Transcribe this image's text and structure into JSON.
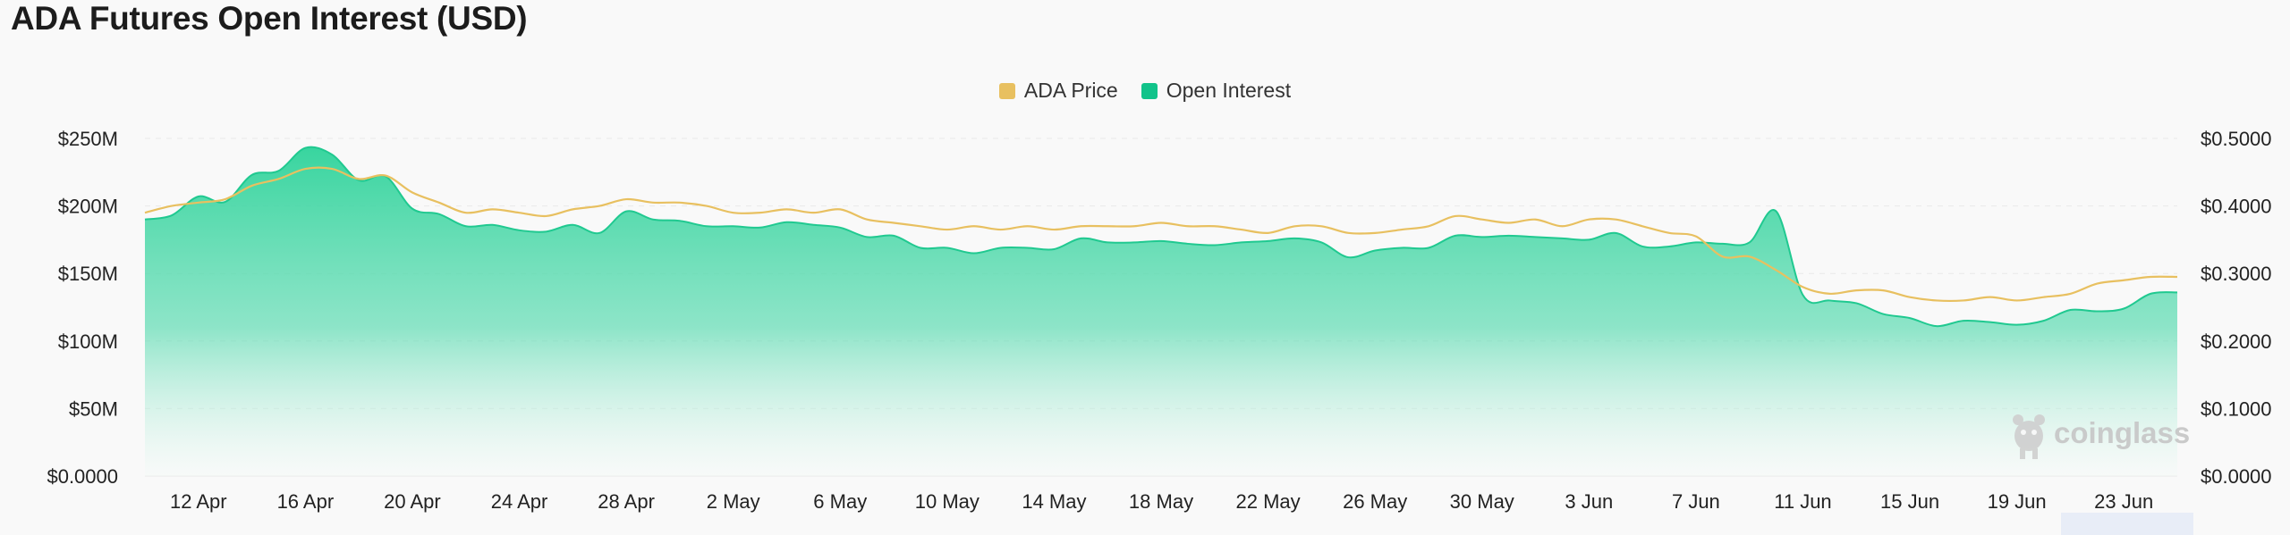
{
  "page": {
    "title": "ADA Futures Open Interest (USD)"
  },
  "legend": [
    {
      "label": "ADA Price",
      "color": "#e8c060"
    },
    {
      "label": "Open Interest",
      "color": "#11c38a"
    }
  ],
  "watermark": "coinglass",
  "chart_data": {
    "type": "area",
    "title": "ADA Futures Open Interest (USD)",
    "grid": true,
    "legend_position": "top-center",
    "x": [
      "2024-04-10",
      "2024-04-11",
      "2024-04-12",
      "2024-04-13",
      "2024-04-14",
      "2024-04-15",
      "2024-04-16",
      "2024-04-17",
      "2024-04-18",
      "2024-04-19",
      "2024-04-20",
      "2024-04-21",
      "2024-04-22",
      "2024-04-23",
      "2024-04-24",
      "2024-04-25",
      "2024-04-26",
      "2024-04-27",
      "2024-04-28",
      "2024-04-29",
      "2024-04-30",
      "2024-05-01",
      "2024-05-02",
      "2024-05-03",
      "2024-05-04",
      "2024-05-05",
      "2024-05-06",
      "2024-05-07",
      "2024-05-08",
      "2024-05-09",
      "2024-05-10",
      "2024-05-11",
      "2024-05-12",
      "2024-05-13",
      "2024-05-14",
      "2024-05-15",
      "2024-05-16",
      "2024-05-17",
      "2024-05-18",
      "2024-05-19",
      "2024-05-20",
      "2024-05-21",
      "2024-05-22",
      "2024-05-23",
      "2024-05-24",
      "2024-05-25",
      "2024-05-26",
      "2024-05-27",
      "2024-05-28",
      "2024-05-29",
      "2024-05-30",
      "2024-05-31",
      "2024-06-01",
      "2024-06-02",
      "2024-06-03",
      "2024-06-04",
      "2024-06-05",
      "2024-06-06",
      "2024-06-07",
      "2024-06-08",
      "2024-06-09",
      "2024-06-10",
      "2024-06-11",
      "2024-06-12",
      "2024-06-13",
      "2024-06-14",
      "2024-06-15",
      "2024-06-16",
      "2024-06-17",
      "2024-06-18",
      "2024-06-19",
      "2024-06-20",
      "2024-06-21",
      "2024-06-22",
      "2024-06-23",
      "2024-06-24",
      "2024-06-25"
    ],
    "x_tick_labels": [
      "12 Apr",
      "16 Apr",
      "20 Apr",
      "24 Apr",
      "28 Apr",
      "2 May",
      "6 May",
      "10 May",
      "14 May",
      "18 May",
      "22 May",
      "26 May",
      "30 May",
      "3 Jun",
      "7 Jun",
      "11 Jun",
      "15 Jun",
      "19 Jun",
      "23 Jun"
    ],
    "y_left": {
      "label": "",
      "ticks": [
        "$0.0000",
        "$50M",
        "$100M",
        "$150M",
        "$200M",
        "$250M"
      ],
      "range": [
        0,
        250000000
      ]
    },
    "y_right": {
      "label": "",
      "ticks": [
        "$0.0000",
        "$0.1000",
        "$0.2000",
        "$0.3000",
        "$0.4000",
        "$0.5000"
      ],
      "range": [
        0,
        0.5
      ]
    },
    "series": [
      {
        "name": "Open Interest",
        "axis": "left",
        "color": "#11c38a",
        "values": [
          190000000,
          193000000,
          207000000,
          203000000,
          223000000,
          226000000,
          243000000,
          238000000,
          219000000,
          222000000,
          198000000,
          194000000,
          185000000,
          186000000,
          182000000,
          181000000,
          186000000,
          180000000,
          196000000,
          190000000,
          189000000,
          185000000,
          185000000,
          184000000,
          188000000,
          186000000,
          184000000,
          177000000,
          178000000,
          169000000,
          169000000,
          165000000,
          169000000,
          169000000,
          168000000,
          176000000,
          173000000,
          173000000,
          174000000,
          172000000,
          171000000,
          173000000,
          174000000,
          176000000,
          173000000,
          162000000,
          167000000,
          169000000,
          169000000,
          178000000,
          177000000,
          178000000,
          177000000,
          176000000,
          175000000,
          180000000,
          170000000,
          170000000,
          173000000,
          172000000,
          173000000,
          196000000,
          134000000,
          130000000,
          128000000,
          120000000,
          117000000,
          111000000,
          115000000,
          114000000,
          112000000,
          115000000,
          123000000,
          122000000,
          124000000,
          135000000,
          136000000
        ]
      },
      {
        "name": "ADA Price",
        "axis": "right",
        "color": "#e8c060",
        "values": [
          0.39,
          0.4,
          0.405,
          0.41,
          0.43,
          0.44,
          0.455,
          0.455,
          0.44,
          0.445,
          0.42,
          0.405,
          0.39,
          0.395,
          0.39,
          0.385,
          0.395,
          0.4,
          0.41,
          0.405,
          0.405,
          0.4,
          0.39,
          0.39,
          0.395,
          0.39,
          0.395,
          0.38,
          0.375,
          0.37,
          0.365,
          0.37,
          0.365,
          0.37,
          0.365,
          0.37,
          0.37,
          0.37,
          0.375,
          0.37,
          0.37,
          0.365,
          0.36,
          0.37,
          0.37,
          0.36,
          0.36,
          0.365,
          0.37,
          0.385,
          0.38,
          0.375,
          0.38,
          0.37,
          0.38,
          0.38,
          0.37,
          0.36,
          0.355,
          0.325,
          0.325,
          0.305,
          0.28,
          0.27,
          0.275,
          0.275,
          0.265,
          0.26,
          0.26,
          0.265,
          0.26,
          0.265,
          0.27,
          0.285,
          0.29,
          0.295,
          0.295
        ]
      }
    ]
  }
}
